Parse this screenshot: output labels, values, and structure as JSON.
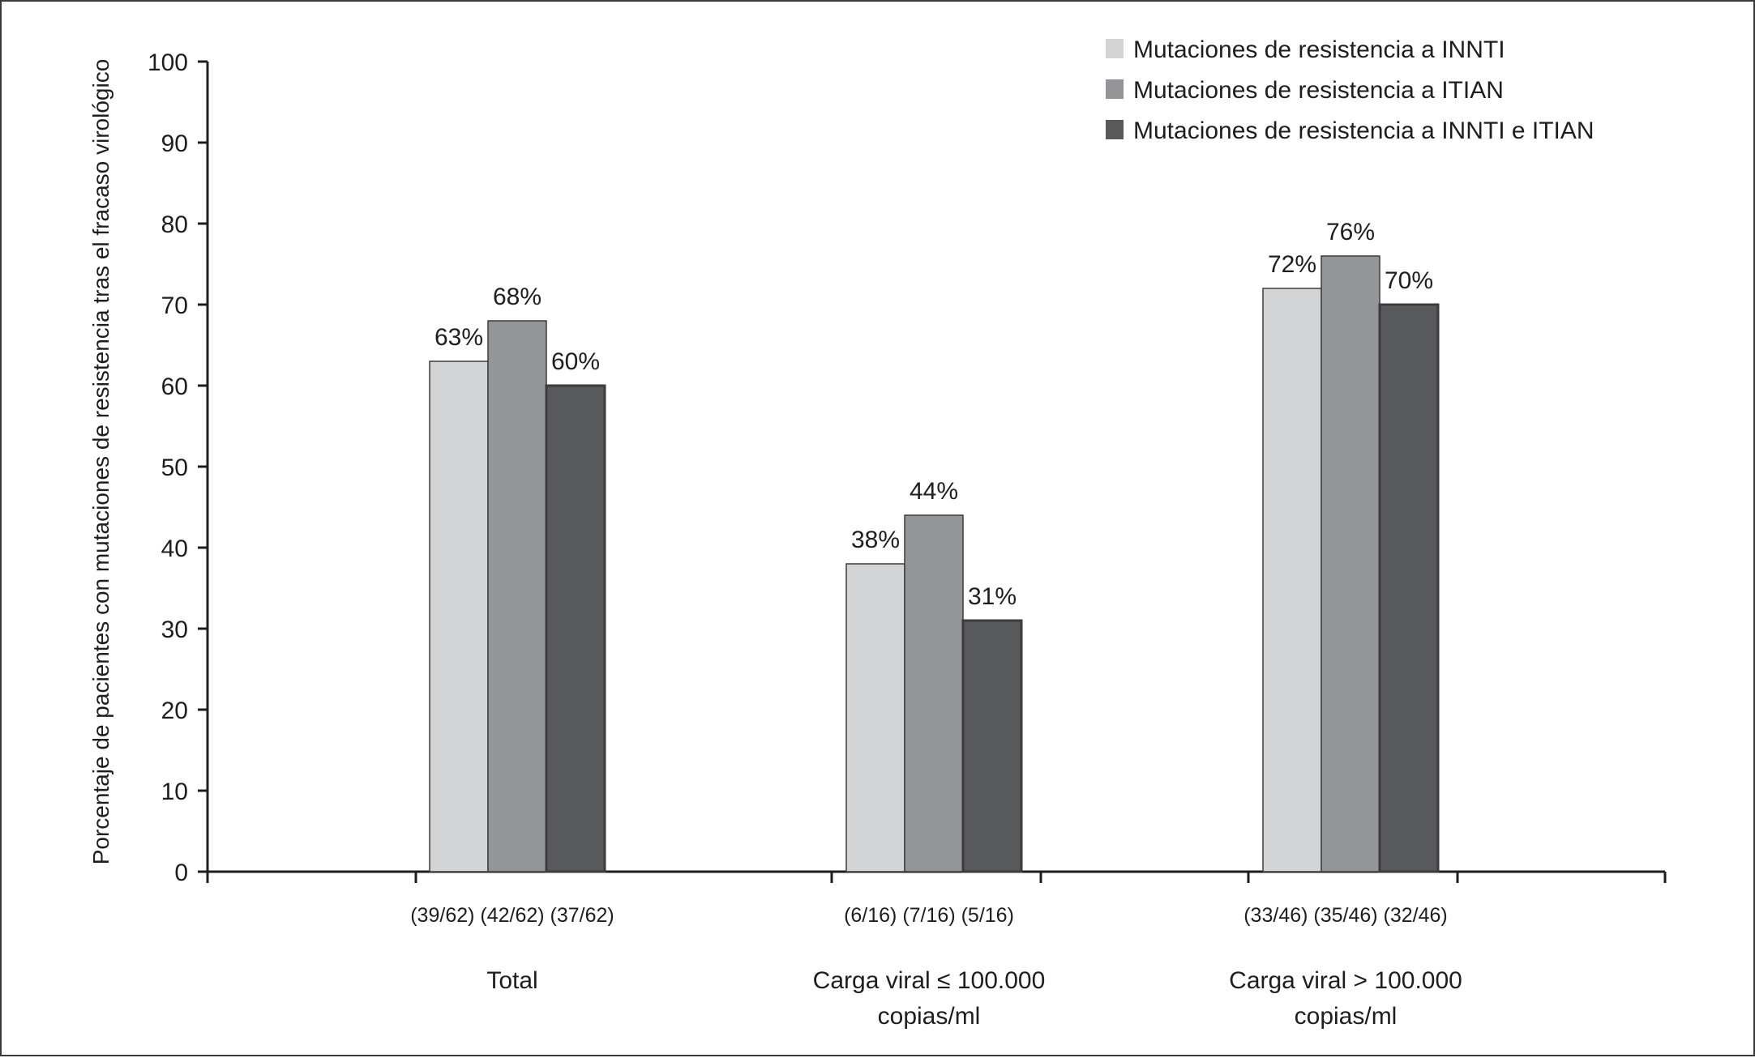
{
  "chart_data": {
    "type": "bar",
    "ylabel": "Porcentaje de pacientes con mutaciones de resistencia tras el fracaso virológico",
    "xlabel": "",
    "ylim": [
      0,
      100
    ],
    "yticks": [
      0,
      10,
      20,
      30,
      40,
      50,
      60,
      70,
      80,
      90,
      100
    ],
    "grid": false,
    "legend_position": "top-right",
    "categories": [
      {
        "lines": [
          "Total"
        ]
      },
      {
        "lines": [
          "Carga viral ≤ 100.000",
          "copias/ml"
        ]
      },
      {
        "lines": [
          "Carga viral > 100.000",
          "copias/ml"
        ]
      }
    ],
    "series": [
      {
        "name": "Mutaciones de resistencia a INNTI",
        "color": "#d3d4d6",
        "values": [
          63,
          38,
          72
        ],
        "labels": [
          "63%",
          "38%",
          "72%"
        ],
        "counts": [
          "(39/62)",
          "(6/16)",
          "(33/46)"
        ]
      },
      {
        "name": "Mutaciones de resistencia a ITIAN",
        "color": "#939598",
        "values": [
          68,
          44,
          76
        ],
        "labels": [
          "68%",
          "44%",
          "76%"
        ],
        "counts": [
          "(42/62)",
          "(7/16)",
          "(35/46)"
        ]
      },
      {
        "name": "Mutaciones de resistencia a INNTI e ITIAN",
        "color": "#58595b",
        "values": [
          60,
          31,
          70
        ],
        "labels": [
          "60%",
          "31%",
          "70%"
        ],
        "counts": [
          "(37/62)",
          "(5/16)",
          "(32/46)"
        ]
      }
    ]
  }
}
